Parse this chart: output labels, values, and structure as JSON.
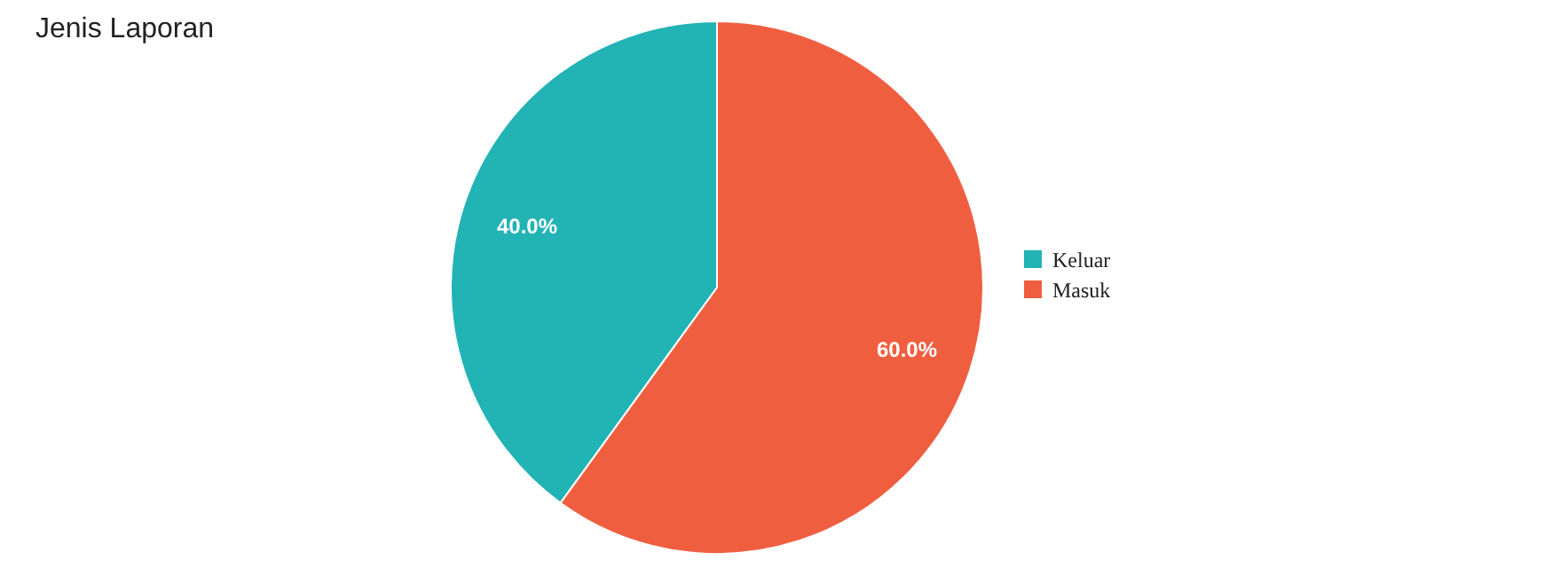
{
  "chart_data": {
    "type": "pie",
    "title": "Jenis Laporan",
    "categories": [
      "Keluar",
      "Masuk"
    ],
    "values": [
      40,
      60
    ],
    "colors": [
      "#22b3b5",
      "#f05e40"
    ],
    "value_labels": [
      "40.0%",
      "60.0%"
    ],
    "legend": "right"
  }
}
